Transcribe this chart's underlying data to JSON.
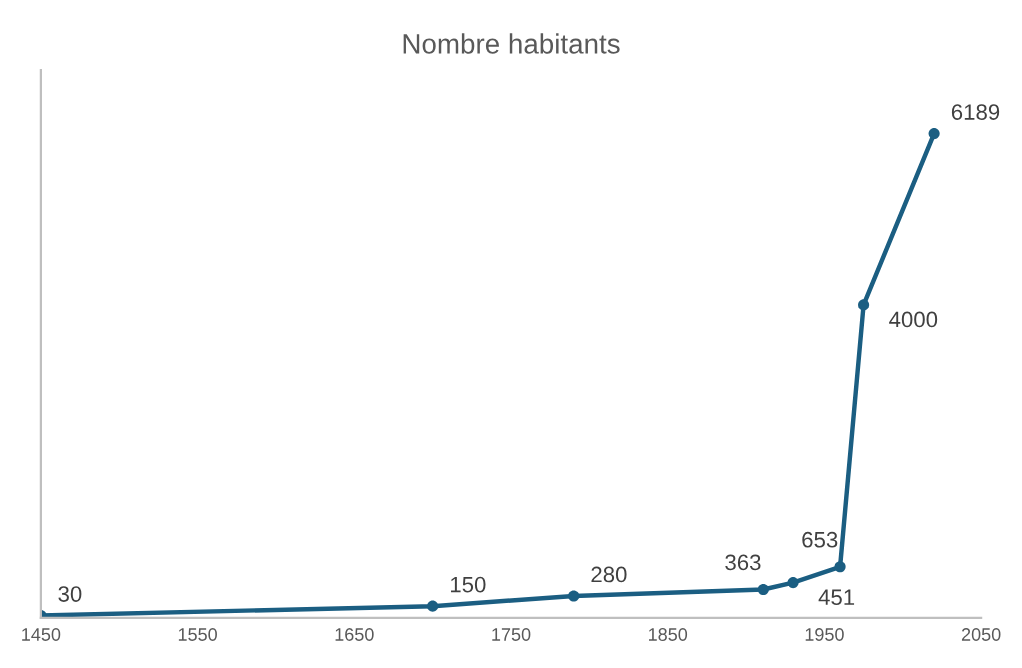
{
  "chart_data": {
    "type": "line",
    "title": "Nombre habitants",
    "x": [
      1450,
      1700,
      1790,
      1911,
      1930,
      1960,
      1975,
      2020
    ],
    "series": [
      {
        "color": "#1b5e82",
        "values": [
          30,
          150,
          280,
          363,
          451,
          653,
          4000,
          6189
        ]
      }
    ],
    "xlim": [
      1450,
      2050
    ],
    "xticks": [
      1450,
      1550,
      1650,
      1750,
      1850,
      1950,
      2050
    ],
    "ylim": [
      0,
      7000
    ],
    "tick_labels": "x",
    "data_labels": true,
    "marker": "circle",
    "line_style": "solid",
    "grid": false,
    "legend": false
  }
}
